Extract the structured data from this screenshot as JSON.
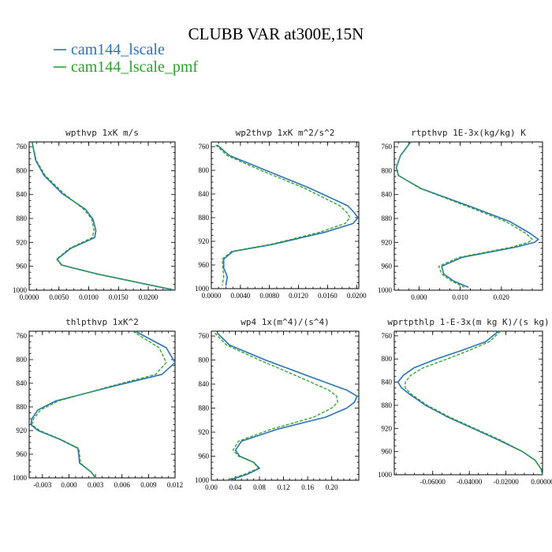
{
  "figure": {
    "title": "CLUBB VAR at300E,15N",
    "legend": [
      {
        "name": "cam144_lscale",
        "color": "#2a73b5",
        "style": "solid"
      },
      {
        "name": "cam144_lscale_pmf",
        "color": "#2ca02c",
        "style": "dashed"
      }
    ]
  },
  "chart_data": [
    {
      "type": "line",
      "title": "wpthvp  1xK m/s",
      "xlim": [
        0,
        0.0245
      ],
      "ylim": [
        1000,
        752
      ],
      "xticks": [
        0,
        0.005,
        0.01,
        0.015,
        0.02
      ],
      "xtick_labels": [
        "0.0000",
        "0.0050",
        "0.0100",
        "0.0150",
        "0.0200"
      ],
      "yticks": [
        760,
        800,
        840,
        880,
        920,
        960,
        1000
      ],
      "ytick_labels": [
        "760",
        "800",
        "840",
        "880",
        "920",
        "960",
        "1000"
      ],
      "y": [
        753,
        783,
        808,
        838,
        865,
        881,
        900,
        912,
        930,
        948,
        958,
        973,
        1000
      ],
      "series": [
        {
          "name": "cam144_lscale",
          "values": [
            0.0005,
            0.0011,
            0.0025,
            0.0055,
            0.0095,
            0.0107,
            0.0112,
            0.011,
            0.007,
            0.0047,
            0.0055,
            0.0115,
            0.0245
          ]
        },
        {
          "name": "cam144_lscale_pmf",
          "values": [
            0.0005,
            0.0012,
            0.0027,
            0.0058,
            0.0092,
            0.0105,
            0.0109,
            0.0106,
            0.0068,
            0.0046,
            0.0054,
            0.0113,
            0.0243
          ]
        }
      ]
    },
    {
      "type": "line",
      "title": "wp2thvp  1xK m^2/s^2",
      "xlim": [
        0,
        0.0203
      ],
      "ylim": [
        1000,
        752
      ],
      "xticks": [
        0,
        0.004,
        0.008,
        0.012,
        0.016,
        0.02
      ],
      "xtick_labels": [
        "0.0000",
        "0.0040",
        "0.0080",
        "0.0120",
        "0.0160",
        "0.0200"
      ],
      "yticks": [
        760,
        800,
        840,
        880,
        920,
        960,
        1000
      ],
      "ytick_labels": [
        "760",
        "800",
        "840",
        "880",
        "920",
        "960",
        "1000"
      ],
      "y": [
        757,
        775,
        800,
        830,
        860,
        872,
        880,
        890,
        905,
        925,
        937,
        950,
        965,
        980,
        995
      ],
      "series": [
        {
          "name": "cam144_lscale",
          "values": [
            0.0008,
            0.0025,
            0.0075,
            0.0135,
            0.0188,
            0.0197,
            0.0202,
            0.0195,
            0.0155,
            0.0085,
            0.003,
            0.0017,
            0.0017,
            0.0022,
            0.002
          ]
        },
        {
          "name": "cam144_lscale_pmf",
          "values": [
            0.0006,
            0.0022,
            0.0068,
            0.0128,
            0.0177,
            0.0187,
            0.0191,
            0.0184,
            0.0148,
            0.0082,
            0.0028,
            0.0015,
            0.0016,
            0.0017,
            0.0015
          ]
        }
      ]
    },
    {
      "type": "line",
      "title": "rtpthvp  1E-3x(kg/kg) K",
      "xlim": [
        -0.006,
        0.03
      ],
      "ylim": [
        1000,
        752
      ],
      "xticks": [
        0,
        0.01,
        0.02
      ],
      "xtick_labels": [
        "0.000",
        "0.010",
        "0.020"
      ],
      "yticks": [
        760,
        800,
        840,
        880,
        920,
        960,
        1000
      ],
      "ytick_labels": [
        "760",
        "800",
        "840",
        "880",
        "920",
        "960",
        "1000"
      ],
      "y": [
        752,
        775,
        795,
        808,
        830,
        860,
        885,
        905,
        915,
        920,
        928,
        945,
        960,
        973,
        985,
        995
      ],
      "series": [
        {
          "name": "cam144_lscale",
          "values": [
            -0.002,
            -0.0045,
            -0.0055,
            -0.005,
            0.0005,
            0.0125,
            0.022,
            0.027,
            0.029,
            0.028,
            0.0235,
            0.0105,
            0.0055,
            0.006,
            0.0085,
            0.012
          ]
        },
        {
          "name": "cam144_lscale_pmf",
          "values": [
            -0.002,
            -0.0045,
            -0.0055,
            -0.005,
            0.0003,
            0.0118,
            0.021,
            0.026,
            0.0275,
            0.0265,
            0.0225,
            0.0098,
            0.0048,
            0.0055,
            0.008,
            0.011
          ]
        }
      ]
    },
    {
      "type": "line",
      "title": "thlpthvp  1xK^2",
      "xlim": [
        -0.0045,
        0.012
      ],
      "ylim": [
        1000,
        752
      ],
      "xticks": [
        -0.003,
        0,
        0.003,
        0.006,
        0.009,
        0.012
      ],
      "xtick_labels": [
        "-0.003",
        "0.000",
        "0.003",
        "0.006",
        "0.009",
        "0.012"
      ],
      "yticks": [
        760,
        800,
        840,
        880,
        920,
        960,
        1000
      ],
      "ytick_labels": [
        "760",
        "800",
        "840",
        "880",
        "920",
        "960",
        "1000"
      ],
      "y": [
        752,
        780,
        805,
        825,
        845,
        870,
        885,
        900,
        910,
        920,
        935,
        950,
        960,
        975,
        990,
        1000
      ],
      "series": [
        {
          "name": "cam144_lscale",
          "values": [
            0.0075,
            0.011,
            0.012,
            0.0105,
            0.005,
            -0.0015,
            -0.0035,
            -0.0042,
            -0.0043,
            -0.0035,
            -0.001,
            0.001,
            0.0011,
            0.0012,
            0.0025,
            0.003
          ]
        },
        {
          "name": "cam144_lscale_pmf",
          "values": [
            0.0072,
            0.0102,
            0.011,
            0.0098,
            0.0047,
            -0.0012,
            -0.0032,
            -0.004,
            -0.0042,
            -0.0033,
            -0.0009,
            0.0011,
            0.0012,
            0.0013,
            0.0025,
            0.003
          ]
        }
      ]
    },
    {
      "type": "line",
      "title": "wp4  1x(m^4)/(s^4)",
      "xlim": [
        0,
        0.245
      ],
      "ylim": [
        1000,
        752
      ],
      "xticks": [
        0,
        0.04,
        0.08,
        0.12,
        0.16,
        0.2
      ],
      "xtick_labels": [
        "0.00",
        "0.04",
        "0.08",
        "0.12",
        "0.16",
        "0.20"
      ],
      "yticks": [
        760,
        800,
        840,
        880,
        920,
        960,
        1000
      ],
      "ytick_labels": [
        "760",
        "800",
        "840",
        "880",
        "920",
        "960",
        "1000"
      ],
      "y": [
        755,
        775,
        800,
        830,
        850,
        860,
        870,
        880,
        895,
        915,
        935,
        950,
        960,
        970,
        980,
        990,
        1000
      ],
      "series": [
        {
          "name": "cam144_lscale",
          "values": [
            0.01,
            0.03,
            0.09,
            0.17,
            0.225,
            0.242,
            0.238,
            0.225,
            0.19,
            0.11,
            0.05,
            0.04,
            0.047,
            0.07,
            0.08,
            0.06,
            0.03
          ]
        },
        {
          "name": "cam144_lscale_pmf",
          "values": [
            0.006,
            0.025,
            0.08,
            0.15,
            0.195,
            0.208,
            0.21,
            0.2,
            0.17,
            0.1,
            0.045,
            0.036,
            0.045,
            0.07,
            0.078,
            0.055,
            0.025
          ]
        }
      ]
    },
    {
      "type": "line",
      "title": "wprtpthlp  1-E-3x(m kg K)/(s kg)",
      "xlim": [
        -0.081,
        0
      ],
      "ylim": [
        1000,
        752
      ],
      "xticks": [
        -0.06,
        -0.04,
        -0.02,
        0
      ],
      "xtick_labels": [
        "-0.06000",
        "-0.04000",
        "-0.02000",
        "0.00000"
      ],
      "yticks": [
        760,
        800,
        840,
        880,
        920,
        960,
        1000
      ],
      "ytick_labels": [
        "760",
        "800",
        "840",
        "880",
        "920",
        "960",
        "1000"
      ],
      "y": [
        752,
        770,
        785,
        800,
        815,
        828,
        840,
        850,
        860,
        880,
        900,
        920,
        940,
        960,
        975,
        990,
        1000
      ],
      "series": [
        {
          "name": "cam144_lscale",
          "values": [
            -0.024,
            -0.031,
            -0.044,
            -0.058,
            -0.07,
            -0.076,
            -0.079,
            -0.077,
            -0.073,
            -0.064,
            -0.052,
            -0.038,
            -0.024,
            -0.011,
            -0.004,
            -0.0008,
            0
          ]
        },
        {
          "name": "cam144_lscale_pmf",
          "values": [
            -0.023,
            -0.029,
            -0.04,
            -0.052,
            -0.065,
            -0.072,
            -0.075,
            -0.075,
            -0.072,
            -0.063,
            -0.051,
            -0.037,
            -0.023,
            -0.011,
            -0.004,
            -0.0008,
            0
          ]
        }
      ]
    }
  ]
}
